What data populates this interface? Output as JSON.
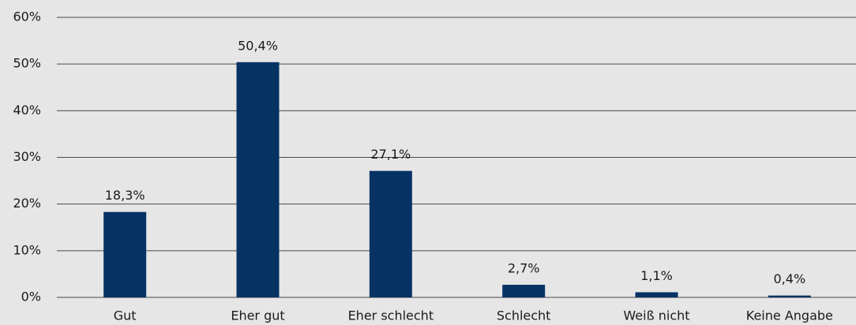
{
  "chart_data": {
    "type": "bar",
    "categories": [
      "Gut",
      "Eher gut",
      "Eher schlecht",
      "Schlecht",
      "Weiß nicht",
      "Keine Angabe"
    ],
    "values": [
      18.3,
      50.4,
      27.1,
      2.7,
      1.1,
      0.4
    ],
    "value_labels": [
      "18,3%",
      "50,4%",
      "27,1%",
      "2,7%",
      "1,1%",
      "0,4%"
    ],
    "color": "#063264",
    "ylim": [
      0,
      60
    ],
    "yticks": [
      {
        "value": 0,
        "label": "0%"
      },
      {
        "value": 10,
        "label": "10%"
      },
      {
        "value": 20,
        "label": "20%"
      },
      {
        "value": 30,
        "label": "30%"
      },
      {
        "value": 40,
        "label": "40%"
      },
      {
        "value": 50,
        "label": "50%"
      },
      {
        "value": 60,
        "label": "60%"
      }
    ],
    "grid": true
  }
}
